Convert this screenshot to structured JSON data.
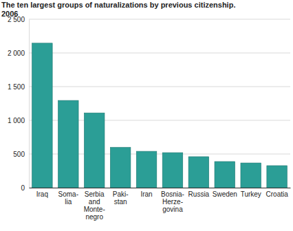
{
  "chart_data": {
    "type": "bar",
    "title": "The ten largest groups of naturalizations by previous citizenship.",
    "subtitle": "2006",
    "categories": [
      "Iraq",
      "Soma-\nlia",
      "Serbia\nand\nMonte-\nnegro",
      "Paki-\nstan",
      "Iran",
      "Bosnia-\nHerze-\ngovina",
      "Russia",
      "Sweden",
      "Turkey",
      "Croatia"
    ],
    "values": [
      2145,
      1295,
      1110,
      600,
      540,
      520,
      460,
      388,
      367,
      327
    ],
    "color": "#2b9e96",
    "ylim": [
      0,
      2500
    ],
    "yticks": [
      0,
      500,
      {
        "value": 1000,
        "label": "1 000"
      },
      {
        "value": 1500,
        "label": "1 500"
      },
      {
        "value": 2000,
        "label": "2 000"
      },
      {
        "value": 2500,
        "label": "2 500"
      }
    ],
    "grid": true
  }
}
